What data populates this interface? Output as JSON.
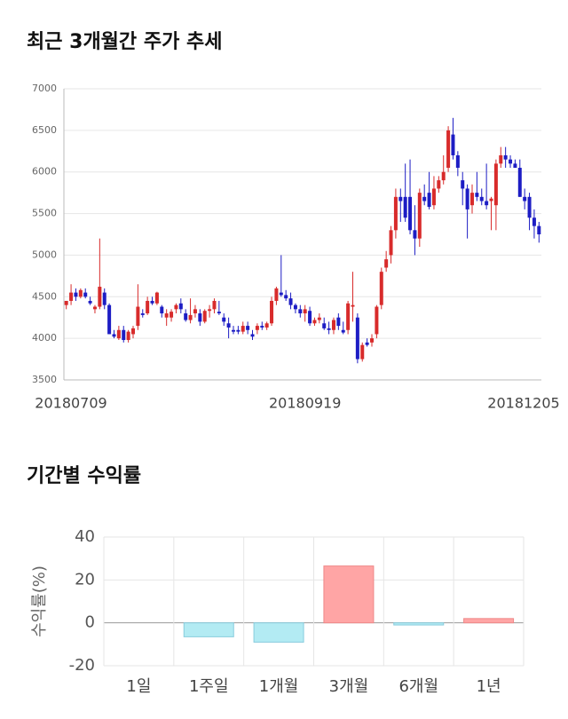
{
  "chart_data": [
    {
      "type": "candlestick",
      "title": "최근 3개월간 주가 추세",
      "categories": [
        "20180709",
        null,
        null,
        null,
        null,
        null,
        null,
        null,
        null,
        null,
        null,
        null,
        null,
        null,
        null,
        null,
        null,
        null,
        null,
        null,
        null,
        null,
        null,
        null,
        null,
        null,
        null,
        null,
        null,
        null,
        null,
        null,
        null,
        null,
        null,
        null,
        null,
        null,
        null,
        null,
        null,
        null,
        null,
        null,
        null,
        null,
        null,
        null,
        null,
        null,
        "20180919",
        null,
        null,
        null,
        null,
        null,
        null,
        null,
        null,
        null,
        null,
        null,
        null,
        null,
        null,
        null,
        null,
        null,
        null,
        null,
        null,
        null,
        null,
        null,
        null,
        null,
        null,
        null,
        null,
        null,
        null,
        null,
        null,
        null,
        null,
        null,
        null,
        null,
        null,
        null,
        null,
        null,
        null,
        null,
        null,
        null,
        null,
        null,
        null,
        "20181205"
      ],
      "ohlc": [
        [
          4400,
          4450,
          4350,
          4450
        ],
        [
          4450,
          4650,
          4400,
          4550
        ],
        [
          4550,
          4600,
          4450,
          4500
        ],
        [
          4500,
          4600,
          4480,
          4580
        ],
        [
          4550,
          4600,
          4480,
          4500
        ],
        [
          4450,
          4500,
          4400,
          4420
        ],
        [
          4350,
          4400,
          4300,
          4380
        ],
        [
          4380,
          5200,
          4350,
          4620
        ],
        [
          4550,
          4600,
          4350,
          4400
        ],
        [
          4400,
          4420,
          4050,
          4050
        ],
        [
          4050,
          4100,
          4000,
          4020
        ],
        [
          4000,
          4150,
          3980,
          4100
        ],
        [
          4100,
          4150,
          3950,
          3980
        ],
        [
          3980,
          4100,
          3950,
          4080
        ],
        [
          4050,
          4150,
          4000,
          4120
        ],
        [
          4150,
          4650,
          4100,
          4380
        ],
        [
          4300,
          4350,
          4250,
          4280
        ],
        [
          4300,
          4500,
          4280,
          4450
        ],
        [
          4450,
          4500,
          4400,
          4420
        ],
        [
          4420,
          4560,
          4400,
          4550
        ],
        [
          4380,
          4400,
          4250,
          4300
        ],
        [
          4250,
          4350,
          4150,
          4300
        ],
        [
          4250,
          4350,
          4200,
          4320
        ],
        [
          4350,
          4420,
          4300,
          4400
        ],
        [
          4420,
          4480,
          4300,
          4350
        ],
        [
          4300,
          4350,
          4200,
          4220
        ],
        [
          4220,
          4480,
          4180,
          4280
        ],
        [
          4300,
          4400,
          4250,
          4350
        ],
        [
          4300,
          4350,
          4150,
          4200
        ],
        [
          4200,
          4350,
          4180,
          4330
        ],
        [
          4330,
          4400,
          4250,
          4350
        ],
        [
          4350,
          4480,
          4300,
          4450
        ],
        [
          4320,
          4450,
          4280,
          4300
        ],
        [
          4250,
          4300,
          4150,
          4200
        ],
        [
          4180,
          4250,
          4000,
          4130
        ],
        [
          4100,
          4150,
          4050,
          4080
        ],
        [
          4100,
          4150,
          4050,
          4080
        ],
        [
          4080,
          4200,
          4050,
          4150
        ],
        [
          4150,
          4200,
          4050,
          4100
        ],
        [
          4050,
          4100,
          3980,
          4020
        ],
        [
          4100,
          4180,
          4050,
          4150
        ],
        [
          4150,
          4200,
          4100,
          4130
        ],
        [
          4130,
          4200,
          4100,
          4180
        ],
        [
          4180,
          4500,
          4150,
          4450
        ],
        [
          4450,
          4620,
          4400,
          4600
        ],
        [
          4550,
          5000,
          4500,
          4520
        ],
        [
          4520,
          4580,
          4450,
          4480
        ],
        [
          4480,
          4550,
          4350,
          4400
        ],
        [
          4400,
          4420,
          4300,
          4350
        ],
        [
          4350,
          4400,
          4250,
          4300
        ],
        [
          4300,
          4400,
          4200,
          4350
        ],
        [
          4330,
          4380,
          4150,
          4180
        ],
        [
          4180,
          4250,
          4150,
          4220
        ],
        [
          4220,
          4300,
          4180,
          4250
        ],
        [
          4180,
          4250,
          4100,
          4120
        ],
        [
          4120,
          4200,
          4050,
          4100
        ],
        [
          4100,
          4250,
          4050,
          4220
        ],
        [
          4250,
          4300,
          4100,
          4150
        ],
        [
          4100,
          4200,
          4050,
          4070
        ],
        [
          4100,
          4450,
          4050,
          4420
        ],
        [
          4380,
          4800,
          4200,
          4400
        ],
        [
          4250,
          4300,
          3700,
          3750
        ],
        [
          3750,
          3950,
          3720,
          3920
        ],
        [
          3950,
          4000,
          3900,
          3920
        ],
        [
          3950,
          4050,
          3900,
          4000
        ],
        [
          4050,
          4400,
          4000,
          4380
        ],
        [
          4400,
          4850,
          4350,
          4800
        ],
        [
          4850,
          5050,
          4800,
          4950
        ],
        [
          5000,
          5350,
          4900,
          5300
        ],
        [
          5300,
          5800,
          5200,
          5700
        ],
        [
          5700,
          5800,
          5400,
          5650
        ],
        [
          5700,
          6100,
          5400,
          5450
        ],
        [
          5700,
          6150,
          5250,
          5300
        ],
        [
          5300,
          5600,
          5000,
          5200
        ],
        [
          5200,
          5800,
          5100,
          5750
        ],
        [
          5700,
          5850,
          5600,
          5650
        ],
        [
          5750,
          6000,
          5550,
          5580
        ],
        [
          5600,
          5950,
          5550,
          5800
        ],
        [
          5800,
          5950,
          5750,
          5900
        ],
        [
          5900,
          6200,
          5850,
          6000
        ],
        [
          6050,
          6550,
          6000,
          6500
        ],
        [
          6450,
          6650,
          6150,
          6200
        ],
        [
          6200,
          6250,
          5950,
          6050
        ],
        [
          5900,
          6000,
          5600,
          5800
        ],
        [
          5800,
          5850,
          5200,
          5550
        ],
        [
          5600,
          5850,
          5500,
          5750
        ],
        [
          5750,
          6000,
          5650,
          5700
        ],
        [
          5700,
          5800,
          5600,
          5650
        ],
        [
          5650,
          6100,
          5550,
          5600
        ],
        [
          5650,
          5700,
          5300,
          5680
        ],
        [
          5600,
          6150,
          5300,
          6100
        ],
        [
          6100,
          6300,
          6050,
          6200
        ],
        [
          6200,
          6300,
          6050,
          6150
        ],
        [
          6150,
          6200,
          6050,
          6100
        ],
        [
          6100,
          6150,
          6050,
          6050
        ],
        [
          6050,
          6150,
          5700,
          5700
        ],
        [
          5700,
          5800,
          5550,
          5650
        ],
        [
          5700,
          5750,
          5300,
          5450
        ],
        [
          5450,
          5550,
          5200,
          5350
        ],
        [
          5350,
          5400,
          5150,
          5250
        ]
      ],
      "up_color": "#d82b2b",
      "down_color": "#1d1dc4",
      "ylim": [
        3500,
        7000
      ],
      "yticks": [
        3500,
        4000,
        4500,
        5000,
        5500,
        6000,
        6500,
        7000
      ],
      "grid": true
    },
    {
      "type": "bar",
      "title": "기간별 수익률",
      "ylabel": "수익률(%)",
      "categories": [
        "1일",
        "1주일",
        "1개월",
        "3개월",
        "6개월",
        "1년"
      ],
      "values": [
        0,
        -6.5,
        -9,
        26.5,
        -1,
        2
      ],
      "positive_color": "#ffa5a5",
      "negative_color": "#b3ebf3",
      "ylim": [
        -20,
        40
      ],
      "yticks": [
        -20,
        0,
        20,
        40
      ],
      "grid": true
    }
  ]
}
